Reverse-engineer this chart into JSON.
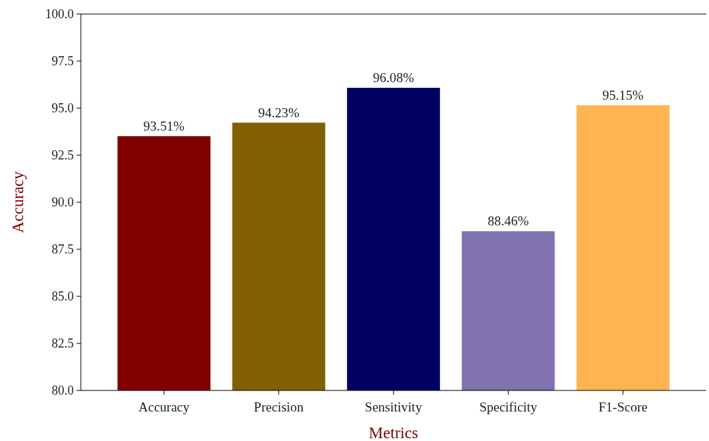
{
  "chart_data": {
    "type": "bar",
    "xlabel": "Metrics",
    "ylabel": "Accuracy",
    "categories": [
      "Accuracy",
      "Precision",
      "Sensitivity",
      "Specificity",
      "F1-Score"
    ],
    "values": [
      93.51,
      94.23,
      96.08,
      88.46,
      95.15
    ],
    "colors": [
      "#800000",
      "#806000",
      "#000060",
      "#8073b0",
      "#ffb450"
    ],
    "value_labels": [
      "93.51%",
      "94.23%",
      "96.08%",
      "88.46%",
      "95.15%"
    ],
    "ylim": [
      80,
      100
    ],
    "yticks": [
      {
        "value": 80,
        "label": "80.0"
      },
      {
        "value": 82.5,
        "label": "82.5"
      },
      {
        "value": 85,
        "label": "85.0"
      },
      {
        "value": 87.5,
        "label": "87.5"
      },
      {
        "value": 90,
        "label": "90.0"
      },
      {
        "value": 92.5,
        "label": "92.5"
      },
      {
        "value": 95,
        "label": "95.0"
      },
      {
        "value": 97.5,
        "label": "97.5"
      },
      {
        "value": 100,
        "label": "100.0"
      }
    ],
    "grid": false
  }
}
